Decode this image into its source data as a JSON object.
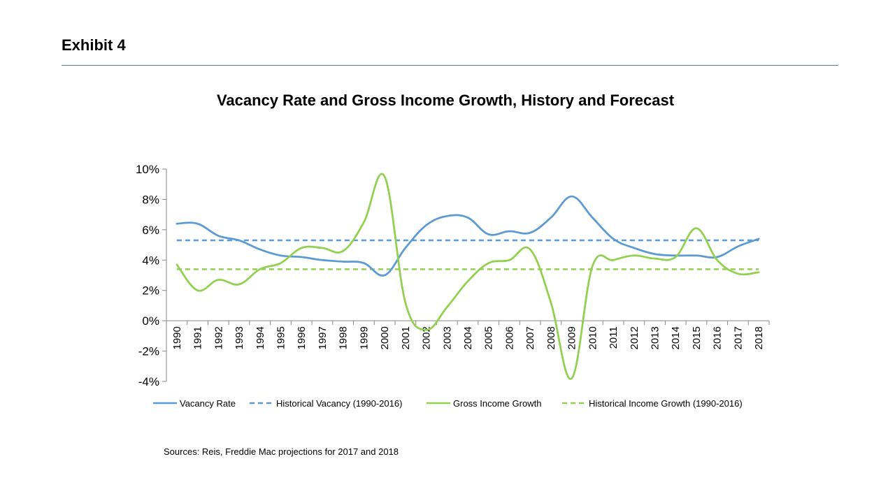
{
  "exhibit_label": "Exhibit 4",
  "source_note": "Sources:  Reis, Freddie Mac projections for 2017 and 2018",
  "chart_data": {
    "type": "line",
    "title": "Vacancy Rate and Gross Income Growth, History and Forecast",
    "xlabel": "",
    "ylabel": "",
    "x": [
      "1990",
      "1991",
      "1992",
      "1993",
      "1994",
      "1995",
      "1996",
      "1997",
      "1998",
      "1999",
      "2000",
      "2001",
      "2002",
      "2003",
      "2004",
      "2005",
      "2006",
      "2007",
      "2008",
      "2009",
      "2010",
      "2011",
      "2012",
      "2013",
      "2014",
      "2015",
      "2016",
      "2017",
      "2018"
    ],
    "ylim": [
      -4,
      10
    ],
    "yticks": [
      -4,
      -2,
      0,
      2,
      4,
      6,
      8,
      10
    ],
    "ytick_labels": [
      "-4%",
      "-2%",
      "0%",
      "2%",
      "4%",
      "6%",
      "8%",
      "10%"
    ],
    "grid": false,
    "legend_position": "bottom",
    "series": [
      {
        "name": "Vacancy Rate",
        "style": "solid",
        "color": "#5b9bd5",
        "values": [
          6.4,
          6.4,
          5.6,
          5.3,
          4.7,
          4.3,
          4.2,
          4.0,
          3.9,
          3.8,
          3.0,
          4.8,
          6.3,
          6.9,
          6.8,
          5.7,
          5.9,
          5.8,
          6.8,
          8.2,
          6.8,
          5.4,
          4.8,
          4.4,
          4.3,
          4.3,
          4.2,
          4.9,
          5.4
        ]
      },
      {
        "name": "Historical Vacancy (1990-2016)",
        "style": "dashed",
        "color": "#5b9bd5",
        "values": [
          5.3,
          5.3,
          5.3,
          5.3,
          5.3,
          5.3,
          5.3,
          5.3,
          5.3,
          5.3,
          5.3,
          5.3,
          5.3,
          5.3,
          5.3,
          5.3,
          5.3,
          5.3,
          5.3,
          5.3,
          5.3,
          5.3,
          5.3,
          5.3,
          5.3,
          5.3,
          5.3,
          5.3,
          5.3
        ]
      },
      {
        "name": "Gross Income Growth",
        "style": "solid",
        "color": "#92d050",
        "values": [
          3.7,
          2.0,
          2.7,
          2.4,
          3.4,
          3.8,
          4.8,
          4.8,
          4.6,
          6.5,
          9.5,
          1.2,
          -0.6,
          0.9,
          2.6,
          3.8,
          4.0,
          4.7,
          1.2,
          -3.8,
          3.6,
          4.0,
          4.3,
          4.1,
          4.2,
          6.1,
          4.0,
          3.1,
          3.2
        ]
      },
      {
        "name": "Historical Income Growth (1990-2016)",
        "style": "dashed",
        "color": "#92d050",
        "values": [
          3.4,
          3.4,
          3.4,
          3.4,
          3.4,
          3.4,
          3.4,
          3.4,
          3.4,
          3.4,
          3.4,
          3.4,
          3.4,
          3.4,
          3.4,
          3.4,
          3.4,
          3.4,
          3.4,
          3.4,
          3.4,
          3.4,
          3.4,
          3.4,
          3.4,
          3.4,
          3.4,
          3.4,
          3.4
        ]
      }
    ]
  }
}
